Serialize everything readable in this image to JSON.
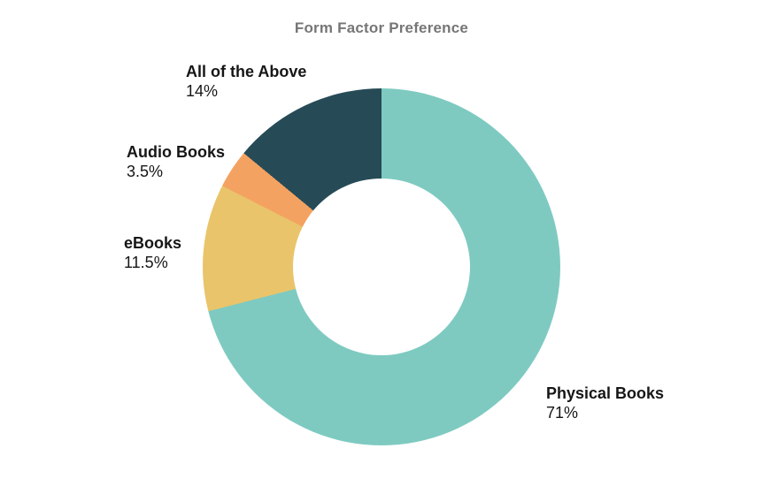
{
  "chart_data": {
    "type": "pie",
    "subtype": "donut",
    "title": "Form Factor Preference",
    "hole_ratio": 0.5,
    "start_angle_deg": 0,
    "direction": "clockwise",
    "legend": "none",
    "background": "#ffffff",
    "title_color": "#767677",
    "label_color": "#161616",
    "segments": [
      {
        "label": "Physical Books",
        "value": 71,
        "value_label": "71%",
        "color": "#7ecac1"
      },
      {
        "label": "eBooks",
        "value": 11.5,
        "value_label": "11.5%",
        "color": "#e9c46a"
      },
      {
        "label": "Audio Books",
        "value": 3.5,
        "value_label": "3.5%",
        "color": "#f4a261"
      },
      {
        "label": "All of the Above",
        "value": 14,
        "value_label": "14%",
        "color": "#264b57"
      }
    ]
  }
}
